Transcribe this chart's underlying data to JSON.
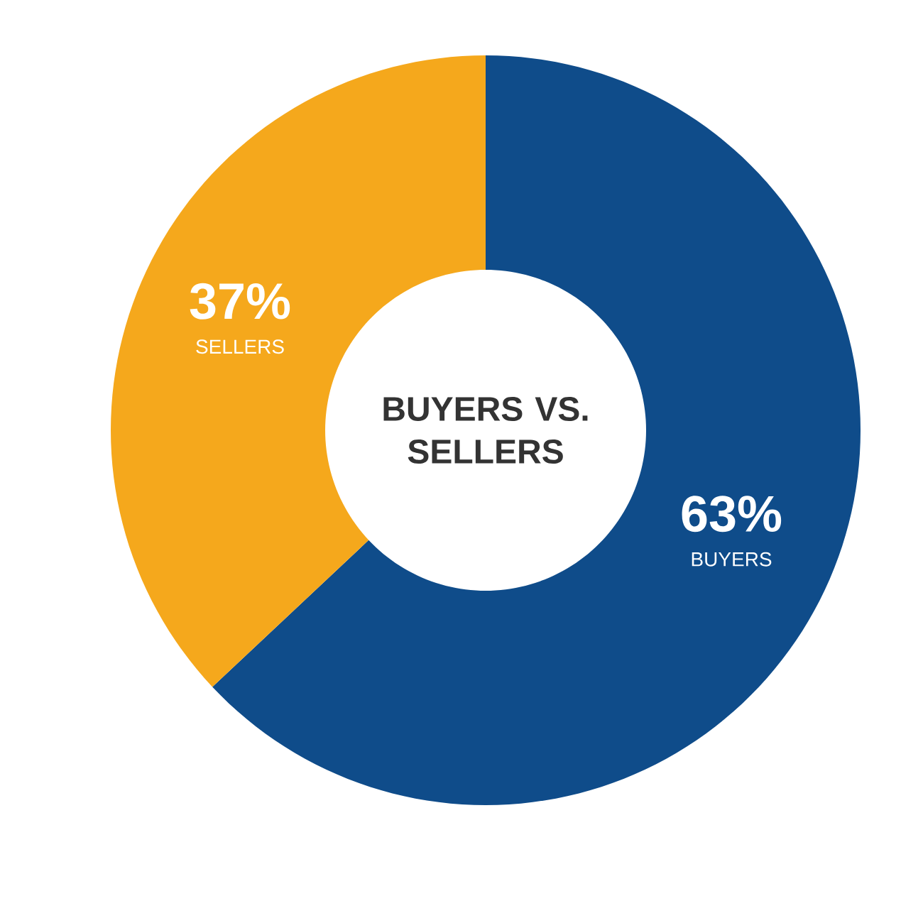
{
  "chart_data": {
    "type": "donut",
    "title": "BUYERS VS. SELLERS",
    "categories": [
      "BUYERS",
      "SELLERS"
    ],
    "values": [
      63,
      37
    ],
    "colors": [
      "#0f4c8a",
      "#f5a81c"
    ],
    "value_labels": [
      "63%",
      "37%"
    ]
  }
}
